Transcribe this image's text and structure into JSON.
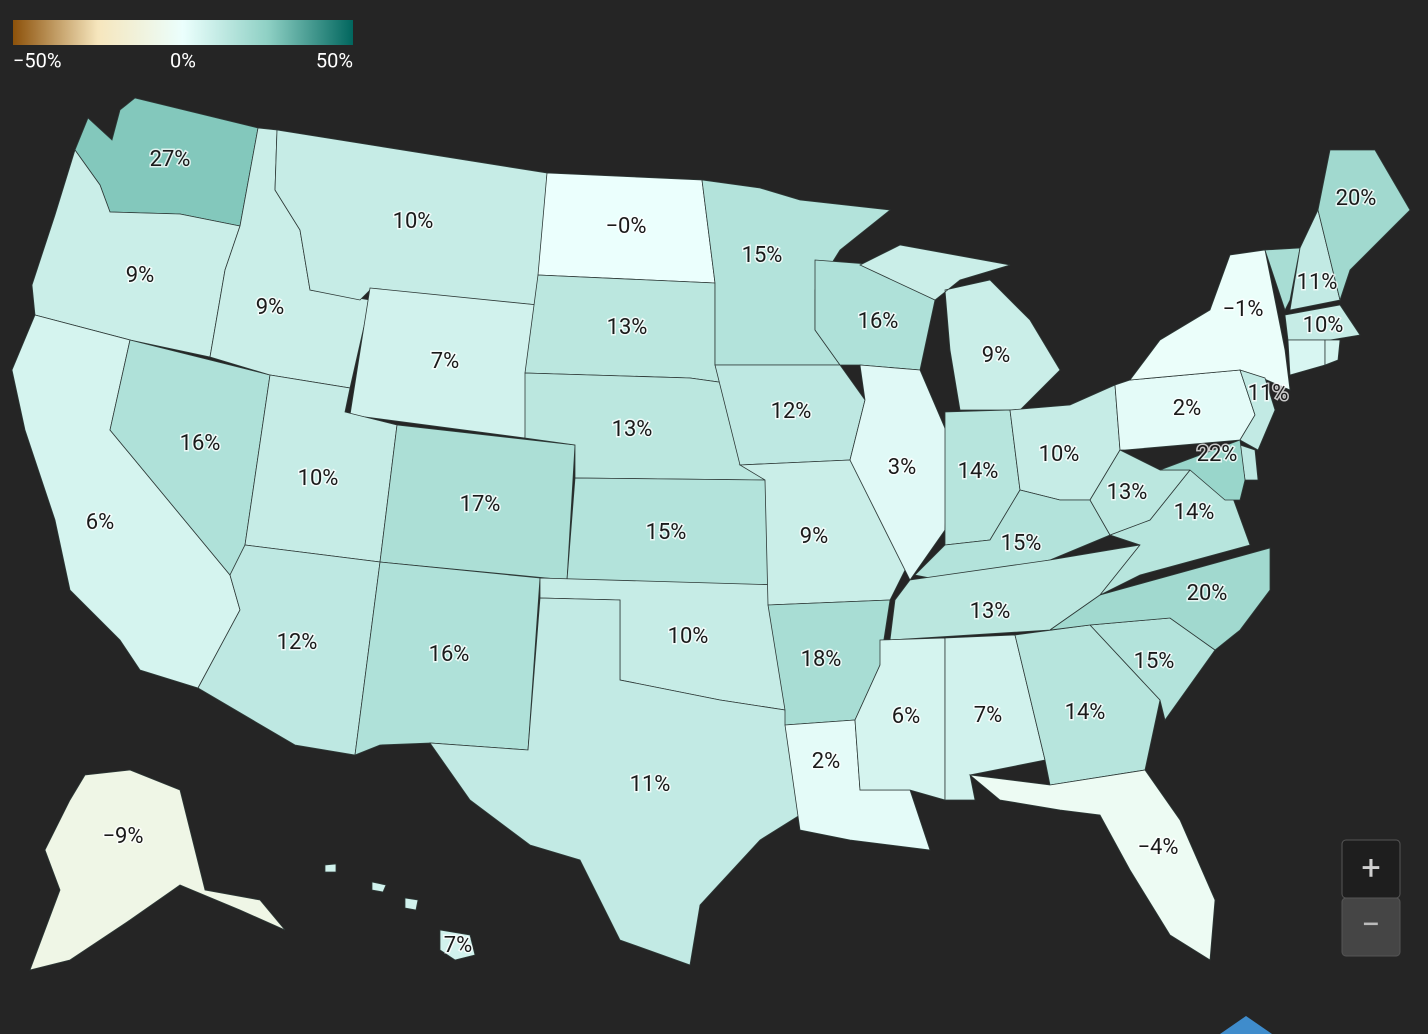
{
  "chart_data": {
    "type": "choropleth",
    "values": [
      27,
      9,
      6,
      16,
      9,
      10,
      7,
      10,
      12,
      17,
      16,
      0,
      13,
      13,
      15,
      10,
      11,
      15,
      12,
      9,
      18,
      2,
      16,
      3,
      9,
      14,
      10,
      15,
      13,
      6,
      7,
      14,
      -4,
      15,
      20,
      14,
      13,
      2,
      -1,
      18,
      11,
      20,
      10,
      5,
      6,
      11,
      12,
      22,
      -9,
      7
    ],
    "value_labels": [
      "27%",
      "9%",
      "6%",
      "16%",
      "9%",
      "10%",
      "7%",
      "10%",
      "12%",
      "17%",
      "16%",
      "−0%",
      "13%",
      "13%",
      "15%",
      "10%",
      "11%",
      "15%",
      "12%",
      "9%",
      "18%",
      "2%",
      "16%",
      "3%",
      "9%",
      "14%",
      "10%",
      "15%",
      "13%",
      "6%",
      "7%",
      "14%",
      "−4%",
      "15%",
      "20%",
      "14%",
      "13%",
      "2%",
      "−1%",
      null,
      "11%",
      "20%",
      "10%",
      null,
      null,
      "11%",
      null,
      "22%",
      "−9%",
      "7%"
    ],
    "clim": [
      -50,
      50
    ],
    "colorscale": [
      "#8c510a",
      "#f6e6bd",
      "#ebfffd",
      "#8ed0c4",
      "#01665e"
    ],
    "cticks": [
      {
        "value": -50,
        "label": "−50%"
      },
      {
        "value": 0,
        "label": "0%"
      },
      {
        "value": 50,
        "label": "50%"
      }
    ]
  },
  "zoom_controls": {
    "zoom_in": "+",
    "zoom_out": "−"
  }
}
